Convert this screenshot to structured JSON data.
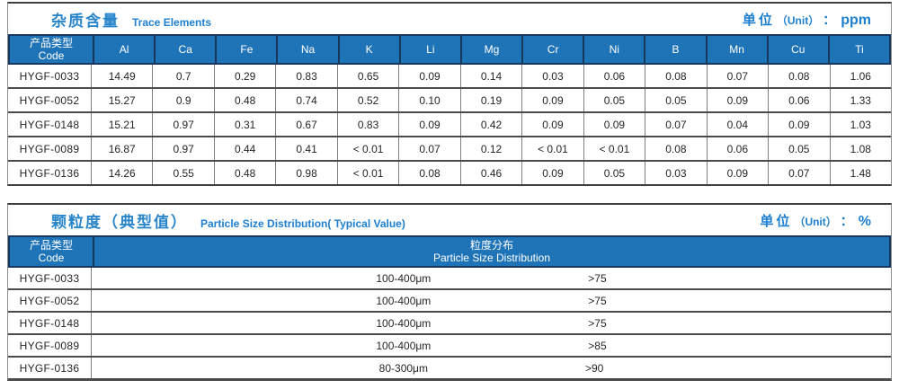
{
  "colors": {
    "header_bg": "#1f74b8",
    "header_border": "#17375e",
    "title_blue": "#1d7fd0",
    "text": "#262626",
    "grid_line": "#7f7f7f",
    "row_line": "#4a4a4a"
  },
  "trace_table": {
    "title_zh": "杂质含量",
    "title_en": "Trace Elements",
    "unit_zh": "单位",
    "unit_paren": "（Unit）",
    "unit_colon": "：",
    "unit_value": "ppm",
    "code_header_zh": "产品类型",
    "code_header_en": "Code",
    "columns": [
      "Al",
      "Ca",
      "Fe",
      "Na",
      "K",
      "Li",
      "Mg",
      "Cr",
      "Ni",
      "B",
      "Mn",
      "Cu",
      "Ti"
    ],
    "rows": [
      {
        "code": "HYGF-0033",
        "values": [
          "14.49",
          "0.7",
          "0.29",
          "0.83",
          "0.65",
          "0.09",
          "0.14",
          "0.03",
          "0.06",
          "0.08",
          "0.07",
          "0.08",
          "1.06"
        ]
      },
      {
        "code": "HYGF-0052",
        "values": [
          "15.27",
          "0.9",
          "0.48",
          "0.74",
          "0.52",
          "0.10",
          "0.19",
          "0.09",
          "0.05",
          "0.05",
          "0.09",
          "0.06",
          "1.33"
        ]
      },
      {
        "code": "HYGF-0148",
        "values": [
          "15.21",
          "0.97",
          "0.31",
          "0.67",
          "0.83",
          "0.09",
          "0.42",
          "0.09",
          "0.09",
          "0.07",
          "0.04",
          "0.09",
          "1.03"
        ]
      },
      {
        "code": "HYGF-0089",
        "values": [
          "16.87",
          "0.97",
          "0.44",
          "0.41",
          "< 0.01",
          "0.07",
          "0.12",
          "< 0.01",
          "< 0.01",
          "0.08",
          "0.06",
          "0.05",
          "1.08"
        ]
      },
      {
        "code": "HYGF-0136",
        "values": [
          "14.26",
          "0.55",
          "0.48",
          "0.98",
          "< 0.01",
          "0.08",
          "0.46",
          "0.09",
          "0.05",
          "0.03",
          "0.09",
          "0.07",
          "1.48"
        ]
      }
    ]
  },
  "particle_table": {
    "title_zh": "颗粒度（典型值）",
    "title_en": "Particle Size Distribution( Typical Value)",
    "unit_zh": "单位",
    "unit_paren": "（Unit）",
    "unit_colon": "：",
    "unit_value": "%",
    "code_header_zh": "产品类型",
    "code_header_en": "Code",
    "dist_header_zh": "粒度分布",
    "dist_header_en": "Particle Size  Distribution",
    "rows": [
      {
        "code": "HYGF-0033",
        "range": "100-400μm",
        "value": ">75"
      },
      {
        "code": "HYGF-0052",
        "range": "100-400μm",
        "value": ">75"
      },
      {
        "code": "HYGF-0148",
        "range": "100-400μm",
        "value": ">75"
      },
      {
        "code": "HYGF-0089",
        "range": "100-400μm",
        "value": ">85"
      },
      {
        "code": "HYGF-0136",
        "range": "80-300μm",
        "value": ">90"
      }
    ]
  }
}
